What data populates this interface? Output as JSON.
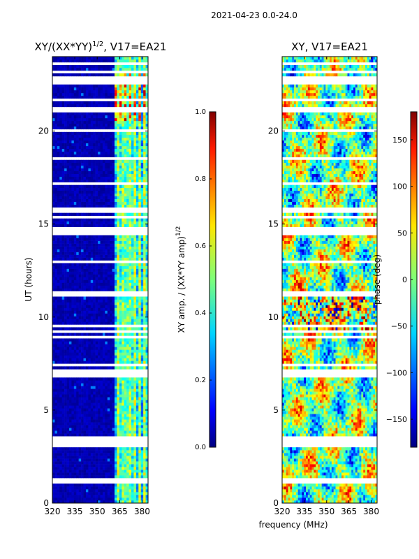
{
  "suptitle": "2021-04-23 0.0-24.0",
  "xlabel": "frequency (MHz)",
  "colors": {
    "background": "#ffffff",
    "axis": "#000000",
    "deep_blue": "#000080",
    "mid_blue": "#0040ff",
    "cyan": "#00d4ff",
    "green": "#7dff7a",
    "yellow": "#ffe600",
    "orange": "#ff7300",
    "red": "#d40000",
    "dark_red": "#800000"
  },
  "chart_data": [
    {
      "type": "heatmap",
      "title": "XY/(XX*YY)",
      "title_sup": "1/2",
      "title_suffix": ", V17=EA21",
      "ylabel": "UT (hours)",
      "xlim": [
        320,
        384
      ],
      "ylim": [
        0,
        24
      ],
      "xticks": [
        320,
        335,
        350,
        365,
        380
      ],
      "yticks": [
        0,
        5,
        10,
        15,
        20
      ],
      "grid": false,
      "description_bands": {
        "low_amp_freq_range": [
          320,
          361
        ],
        "high_amp_freq_range": [
          361,
          384
        ],
        "strong_patch_hours": [
          20.5,
          23.2
        ]
      },
      "colorbar": {
        "label": "XY amp. / (XX*YY amp)",
        "label_sup": "1/2",
        "range": [
          0.0,
          1.0
        ],
        "ticks": [
          "0.0",
          "0.2",
          "0.4",
          "0.6",
          "0.8",
          "1.0"
        ],
        "colormap": "jet"
      }
    },
    {
      "type": "heatmap",
      "title": "XY, V17=EA21",
      "ylabel": "",
      "xlim": [
        320,
        384
      ],
      "ylim": [
        0,
        24
      ],
      "xticks": [
        320,
        335,
        350,
        365,
        380
      ],
      "yticks": [
        0,
        5,
        10,
        15,
        20
      ],
      "grid": false,
      "colorbar": {
        "label": "phase (deg)",
        "range": [
          -180,
          180
        ],
        "ticks": [
          "−150",
          "−100",
          "−50",
          "0",
          "50",
          "100",
          "150"
        ],
        "tick_values": [
          -150,
          -100,
          -50,
          0,
          50,
          100,
          150
        ],
        "colormap": "jet"
      }
    }
  ]
}
